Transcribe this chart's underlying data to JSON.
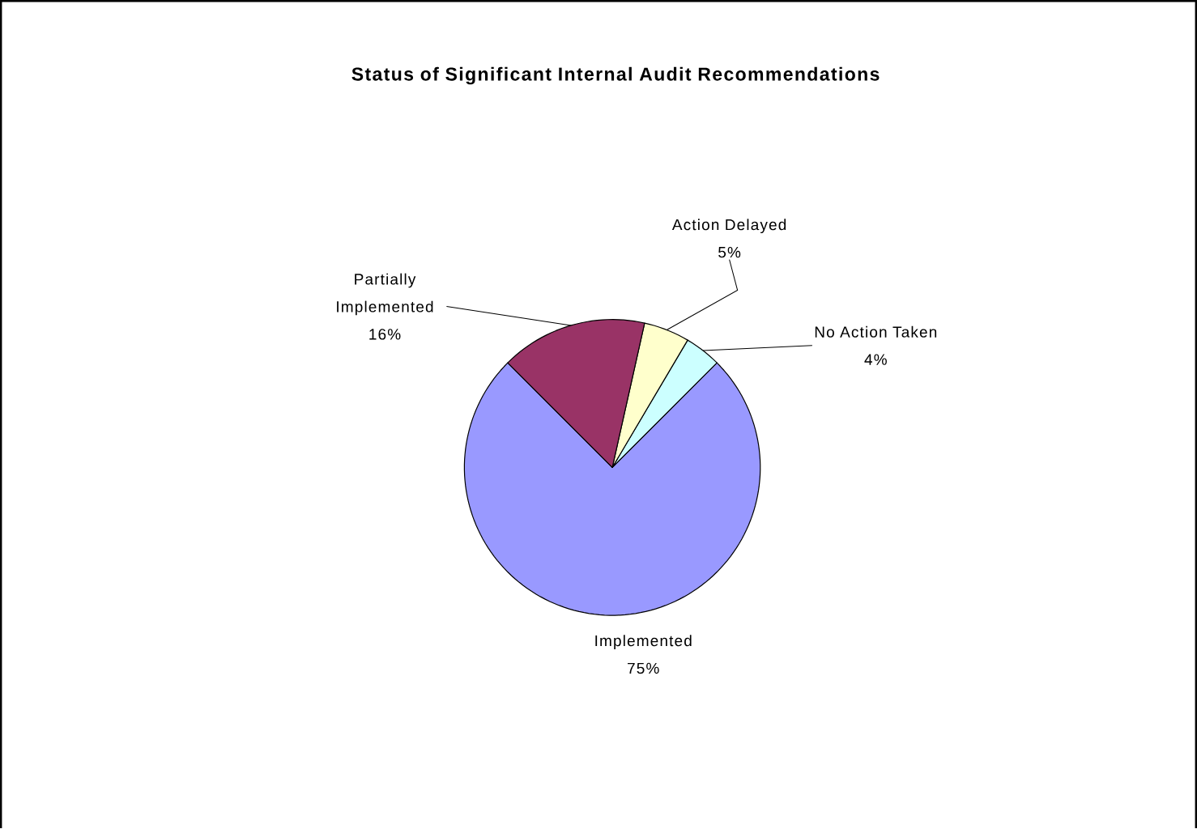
{
  "chart_data": {
    "type": "pie",
    "title": "Status of Significant Internal Audit Recommendations",
    "categories": [
      "Implemented",
      "No Action Taken",
      "Action Delayed",
      "Partially Implemented"
    ],
    "values": [
      75,
      4,
      5,
      16
    ],
    "value_labels": [
      "75%",
      "4%",
      "5%",
      "16%"
    ],
    "colors": [
      "#9999ff",
      "#ccffff",
      "#ffffcc",
      "#993366"
    ]
  }
}
